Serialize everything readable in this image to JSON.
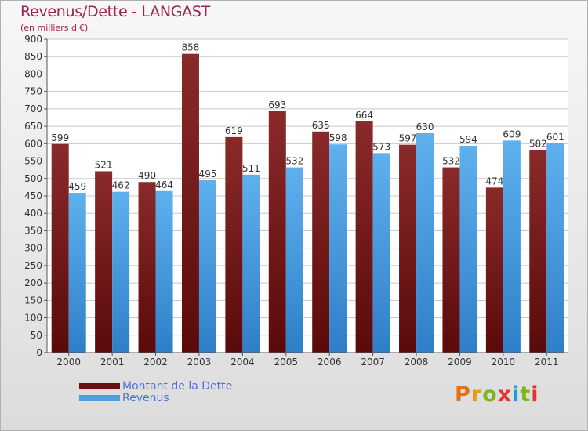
{
  "title": "Revenus/Dette - LANGAST",
  "subtitle": "(en milliers d'€)",
  "logo": {
    "text": "Proxiti",
    "colors": [
      "#e0701a",
      "#e89a10",
      "#7fb51c",
      "#e83030",
      "#1aa0d8",
      "#7fb51c",
      "#e83030"
    ]
  },
  "chart_data": {
    "type": "bar",
    "categories": [
      "2000",
      "2001",
      "2002",
      "2003",
      "2004",
      "2005",
      "2006",
      "2007",
      "2008",
      "2009",
      "2010",
      "2011"
    ],
    "series": [
      {
        "name": "Montant de la Dette",
        "color": "#7a1c1c",
        "values": [
          599,
          521,
          490,
          858,
          619,
          693,
          635,
          664,
          597,
          532,
          474,
          582
        ]
      },
      {
        "name": "Revenus",
        "color": "#4a9fe0",
        "values": [
          459,
          462,
          464,
          495,
          511,
          532,
          598,
          573,
          630,
          594,
          609,
          601
        ]
      }
    ],
    "ylim": [
      0,
      900
    ],
    "yticks": [
      "0",
      "50",
      "100",
      "150",
      "200",
      "250",
      "300",
      "350",
      "400",
      "450",
      "500",
      "550",
      "600",
      "650",
      "700",
      "750",
      "800",
      "850",
      "900"
    ],
    "grid": true,
    "legend": "bottom-left"
  }
}
